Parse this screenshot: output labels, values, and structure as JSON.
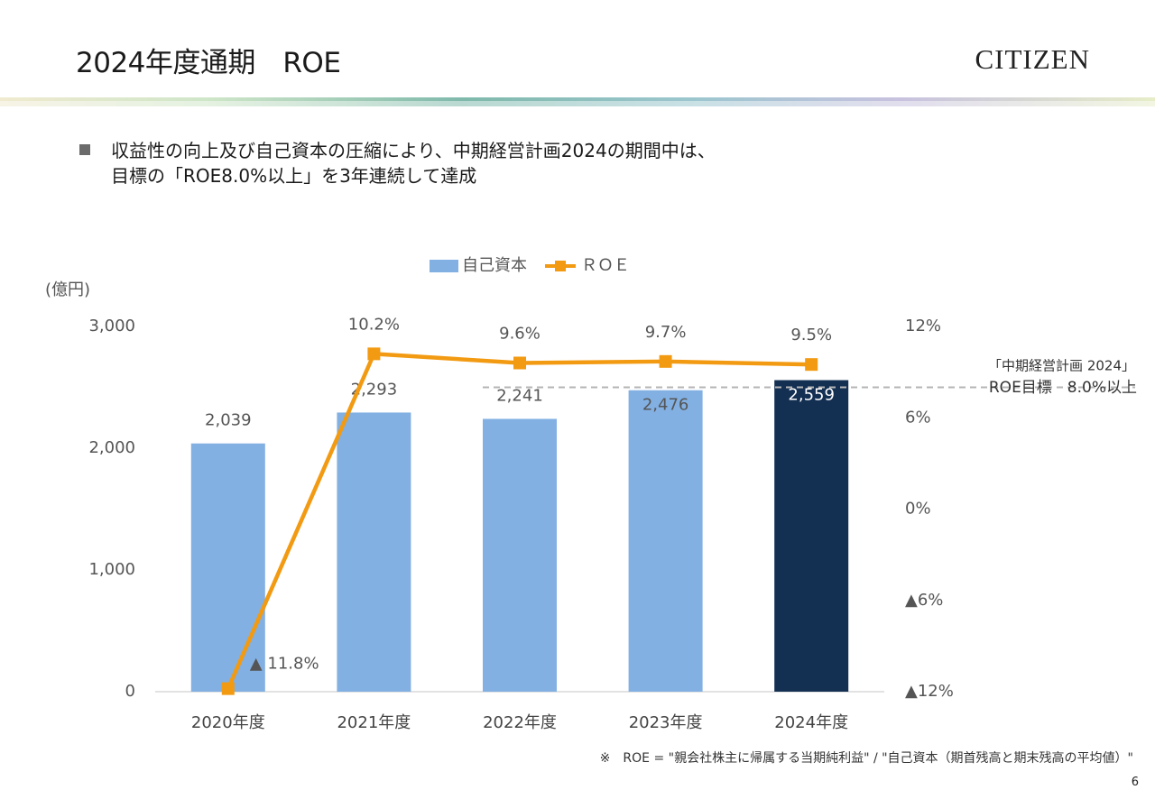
{
  "slide": {
    "title": "2024年度通期　ROE",
    "brand": "CITIZEN",
    "bullet_line1": "収益性の向上及び自己資本の圧縮により、中期経営計画2024の期間中は、",
    "bullet_line2": "目標の「ROE8.0%以上」を3年連続して達成",
    "footnote": "※　ROE = \"親会社株主に帰属する当期純利益\" / \"自己資本（期首残高と期末残高の平均値）\"",
    "page_number": "6"
  },
  "colors": {
    "bar": "#83b0e2",
    "bar_highlight": "#132f52",
    "line": "#f29a12",
    "grid": "#d0d0d0",
    "target_line": "#b5b5b5",
    "tick_text": "#555555",
    "label_text": "#555555"
  },
  "chart_data": {
    "type": "bar",
    "categories": [
      "2020年度",
      "2021年度",
      "2022年度",
      "2023年度",
      "2024年度"
    ],
    "series": [
      {
        "name": "自己資本",
        "type": "bar",
        "axis": "left",
        "values": [
          2039,
          2293,
          2241,
          2476,
          2559
        ],
        "labels": [
          "2,039",
          "2,293",
          "2,241",
          "2,476",
          "2,559"
        ],
        "highlight_index": 4
      },
      {
        "name": "ＲＯＥ",
        "type": "line",
        "axis": "right",
        "values": [
          -11.8,
          10.2,
          9.6,
          9.7,
          9.5
        ],
        "labels": [
          "▲ 11.8%",
          "10.2%",
          "9.6%",
          "9.7%",
          "9.5%"
        ]
      }
    ],
    "y_left": {
      "unit_label": "(億円)",
      "ylim": [
        0,
        3000
      ],
      "ticks": [
        0,
        1000,
        2000,
        3000
      ],
      "tick_labels": [
        "0",
        "1,000",
        "2,000",
        "3,000"
      ]
    },
    "y_right": {
      "ylim": [
        -12,
        12
      ],
      "ticks": [
        -12,
        -6,
        0,
        6,
        12
      ],
      "tick_labels": [
        "▲12%",
        "▲6%",
        "0%",
        "6%",
        "12%"
      ]
    },
    "target": {
      "value": 8.0,
      "from_index": 2,
      "label_line1": "「中期経営計画 2024」",
      "label_line2": "ROE目標　8.0%以上"
    },
    "legend_position": "top-center",
    "grid": false
  }
}
